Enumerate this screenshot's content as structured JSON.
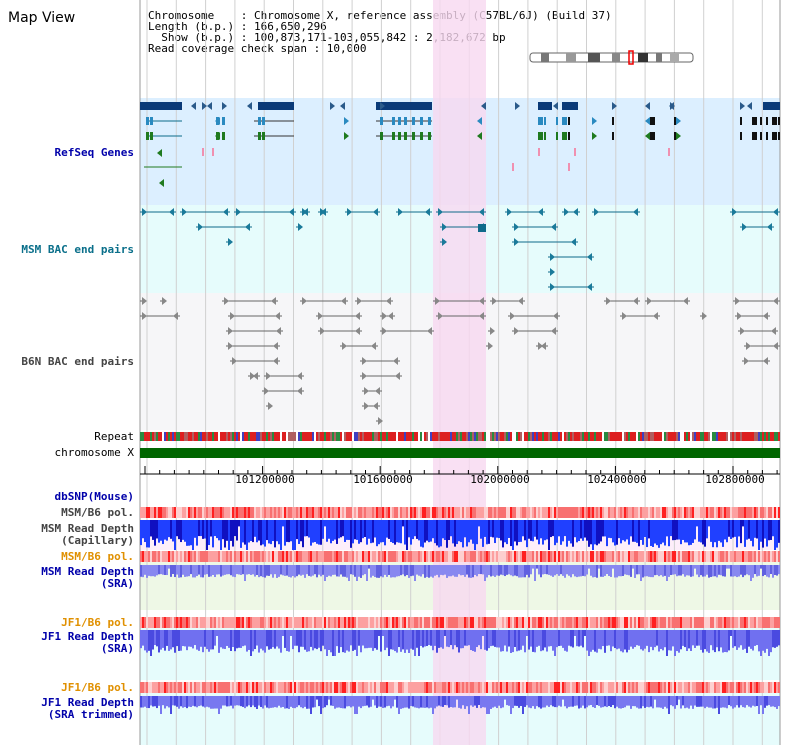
{
  "header": {
    "title": "Map View",
    "chromosome_line": "Chromosome    : Chromosome X, reference assembly (C57BL/6J) (Build 37)",
    "length_line": "Length (b.p.) : 166,650,296",
    "show_line": "  Show (b.p.) : 100,873,171-103,055,842 : 2,182,672 bp",
    "coverage_line": "Read coverage check span : 10,000"
  },
  "tracks": {
    "refseq": "RefSeq Genes",
    "msm_bac": "MSM BAC end pairs",
    "b6n_bac": "B6N BAC end pairs",
    "repeat": "Repeat",
    "chromosome": "chromosome X",
    "dbsnp": "dbSNP(Mouse)",
    "msm_b6_pol_1": "MSM/B6 pol.",
    "msm_read_depth_cap": "MSM Read Depth\n(Capillary)",
    "msm_b6_pol_2": "MSM/B6 pol.",
    "msm_read_depth_sra": "MSM Read Depth\n(SRA)",
    "jf1_b6_pol_1": "JF1/B6 pol.",
    "jf1_read_depth_sra": "JF1 Read Depth\n(SRA)",
    "jf1_b6_pol_2": "JF1/B6 pol.",
    "jf1_read_depth_trimmed": "JF1 Read Depth\n(SRA trimmed)"
  },
  "axis": {
    "ticks": [
      "101200000",
      "101600000",
      "102000000",
      "102400000",
      "102800000"
    ]
  },
  "colors": {
    "refseq_bg": "#dcefff",
    "msm_bg": "#e6fcfc",
    "b6n_bg": "#f6f6f8",
    "highlight": "#f8d8f0",
    "gene_dark": "#0a3a78",
    "gene_green": "#1f7a1f",
    "msm_line": "#0f6a8a",
    "chrom_green": "#006600",
    "label_blue": "#0000aa",
    "label_teal": "#0a6f8a",
    "label_orange": "#e09000"
  }
}
